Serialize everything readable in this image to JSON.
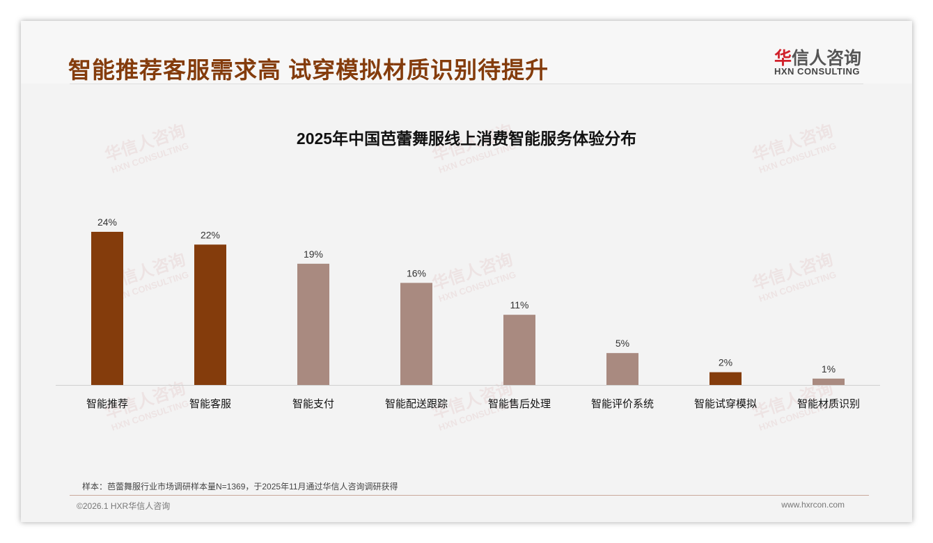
{
  "header": {
    "title": "智能推荐客服需求高 试穿模拟材质识别待提升",
    "logo_cn_red": "华",
    "logo_cn": "信人咨询",
    "logo_en": "HXN CONSULTING"
  },
  "watermark": {
    "cn": "华信人咨询",
    "en": "HXN CONSULTING"
  },
  "chart_data": {
    "type": "bar",
    "title": "2025年中国芭蕾舞服线上消费智能服务体验分布",
    "categories": [
      "智能推荐",
      "智能客服",
      "智能支付",
      "智能配送跟踪",
      "智能售后处理",
      "智能评价系统",
      "智能试穿模拟",
      "智能材质识别"
    ],
    "values": [
      24,
      22,
      19,
      16,
      11,
      5,
      2,
      1
    ],
    "labels": [
      "24%",
      "22%",
      "19%",
      "16%",
      "11%",
      "5%",
      "2%",
      "1%"
    ],
    "highlight": [
      true,
      true,
      false,
      false,
      false,
      false,
      true,
      false
    ],
    "colors": {
      "highlight": "#843c0c",
      "normal": "#a98a80"
    },
    "xlabel": "",
    "ylabel": "",
    "ylim": [
      0,
      24
    ],
    "grid": false
  },
  "footer": {
    "note": "样本：芭蕾舞服行业市场调研样本量N=1369，于2025年11月通过华信人咨询调研获得",
    "copyright": "©2026.1 HXR华信人咨询",
    "url": "www.hxrcon.com"
  }
}
